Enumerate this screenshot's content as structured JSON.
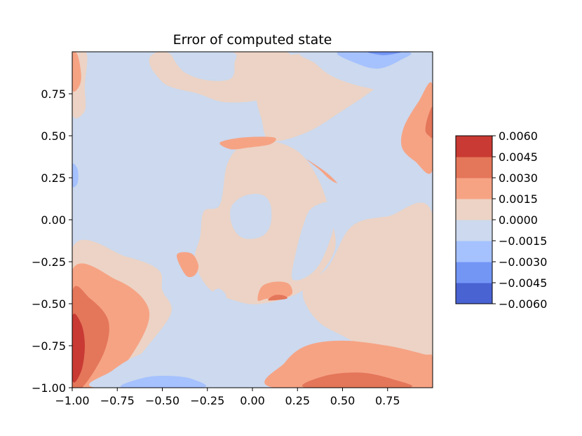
{
  "chart_data": {
    "type": "contourf",
    "title": "Error of computed state",
    "xlabel": "",
    "ylabel": "",
    "xlim": [
      -1.0,
      1.0
    ],
    "ylim": [
      -1.0,
      1.0
    ],
    "x_ticks": [
      "−1.00",
      "−0.75",
      "−0.50",
      "−0.25",
      "0.00",
      "0.25",
      "0.50",
      "0.75"
    ],
    "x_tick_values": [
      -1.0,
      -0.75,
      -0.5,
      -0.25,
      0.0,
      0.25,
      0.5,
      0.75
    ],
    "y_ticks": [
      "−1.00",
      "−0.75",
      "−0.50",
      "−0.25",
      "0.00",
      "0.25",
      "0.50",
      "0.75"
    ],
    "y_tick_values": [
      -1.0,
      -0.75,
      -0.5,
      -0.25,
      0.0,
      0.25,
      0.5,
      0.75
    ],
    "colorbar": {
      "levels": [
        -0.006,
        -0.0045,
        -0.003,
        -0.0015,
        0.0,
        0.0015,
        0.003,
        0.0045,
        0.006
      ],
      "tick_labels": [
        "0.0060",
        "0.0045",
        "0.0030",
        "0.0015",
        "0.0000",
        "−0.0015",
        "−0.0030",
        "−0.0045",
        "−0.0060"
      ],
      "colors": [
        "#4a63d3",
        "#7396f5",
        "#a5c1fe",
        "#ccd9ee",
        "#ecd3c5",
        "#f6a384",
        "#e4765a",
        "#c83a33"
      ]
    },
    "regions": [
      {
        "level": 0.0,
        "points": [
          [
            -0.18,
            0.09
          ],
          [
            -0.14,
            0.33
          ],
          [
            -0.05,
            0.45
          ],
          [
            0.1,
            0.47
          ],
          [
            0.26,
            0.4
          ],
          [
            0.37,
            0.23
          ],
          [
            0.44,
            0.0
          ],
          [
            0.45,
            -0.2
          ],
          [
            0.28,
            -0.42
          ],
          [
            0.05,
            -0.5
          ],
          [
            -0.1,
            -0.48
          ],
          [
            -0.24,
            -0.41
          ],
          [
            -0.32,
            -0.25
          ],
          [
            -0.29,
            -0.1
          ],
          [
            -0.27,
            0.05
          ]
        ]
      },
      {
        "level": 0.0,
        "points": [
          [
            0.28,
            -0.42
          ],
          [
            0.42,
            -0.28
          ],
          [
            0.55,
            -0.04
          ],
          [
            0.75,
            0.02
          ],
          [
            1.0,
            0.03
          ],
          [
            1.0,
            -0.95
          ],
          [
            0.82,
            -0.9
          ],
          [
            0.55,
            -0.72
          ],
          [
            0.36,
            -0.6
          ]
        ]
      },
      {
        "level": 0.0,
        "points": [
          [
            0.1,
            0.47
          ],
          [
            0.05,
            0.6
          ],
          [
            0.02,
            0.75
          ],
          [
            0.05,
            0.9
          ],
          [
            0.2,
            0.98
          ],
          [
            0.6,
            0.99
          ],
          [
            0.85,
            0.98
          ],
          [
            0.7,
            0.8
          ],
          [
            0.5,
            0.65
          ],
          [
            0.3,
            0.52
          ]
        ]
      },
      {
        "level": 0.0,
        "points": [
          [
            -1.0,
            -0.17
          ],
          [
            -0.7,
            -0.22
          ],
          [
            -0.52,
            -0.3
          ],
          [
            -0.5,
            -0.42
          ],
          [
            -0.45,
            -0.55
          ],
          [
            -0.58,
            -0.75
          ],
          [
            -0.72,
            -0.92
          ],
          [
            -0.78,
            -1.0
          ],
          [
            -1.0,
            -1.0
          ]
        ]
      },
      {
        "level": 0.0,
        "points": [
          [
            -0.5,
            0.82
          ],
          [
            -0.3,
            0.75
          ],
          [
            -0.15,
            0.7
          ],
          [
            0.05,
            0.72
          ],
          [
            0.12,
            0.82
          ],
          [
            0.18,
            1.0
          ],
          [
            -0.52,
            1.0
          ]
        ]
      },
      {
        "level": 0.0,
        "points": [
          [
            -1.0,
            0.99
          ],
          [
            -0.92,
            0.99
          ],
          [
            -0.93,
            0.8
          ],
          [
            -0.93,
            0.65
          ],
          [
            -1.0,
            0.63
          ]
        ]
      },
      {
        "level": 0.0015,
        "points": [
          [
            -1.0,
            -0.3
          ],
          [
            -0.75,
            -0.36
          ],
          [
            -0.6,
            -0.48
          ],
          [
            -0.58,
            -0.62
          ],
          [
            -0.7,
            -0.85
          ],
          [
            -0.85,
            -1.0
          ],
          [
            -1.0,
            -1.0
          ]
        ]
      },
      {
        "level": 0.003,
        "points": [
          [
            -1.0,
            -0.43
          ],
          [
            -0.9,
            -0.47
          ],
          [
            -0.8,
            -0.6
          ],
          [
            -0.82,
            -0.78
          ],
          [
            -0.93,
            -0.98
          ],
          [
            -1.0,
            -1.0
          ]
        ]
      },
      {
        "level": 0.0045,
        "points": [
          [
            -1.0,
            -0.58
          ],
          [
            -0.95,
            -0.62
          ],
          [
            -0.93,
            -0.75
          ],
          [
            -0.95,
            -0.9
          ],
          [
            -1.0,
            -0.95
          ]
        ]
      },
      {
        "level": 0.0015,
        "points": [
          [
            0.12,
            -1.0
          ],
          [
            0.18,
            -0.85
          ],
          [
            0.3,
            -0.75
          ],
          [
            0.5,
            -0.72
          ],
          [
            0.75,
            -0.75
          ],
          [
            0.95,
            -0.8
          ],
          [
            1.0,
            -0.82
          ],
          [
            1.0,
            -1.0
          ]
        ]
      },
      {
        "level": 0.003,
        "points": [
          [
            0.3,
            -1.0
          ],
          [
            0.4,
            -0.93
          ],
          [
            0.6,
            -0.91
          ],
          [
            0.78,
            -0.95
          ],
          [
            0.86,
            -1.0
          ]
        ]
      },
      {
        "level": 0.0015,
        "points": [
          [
            1.0,
            0.8
          ],
          [
            0.92,
            0.7
          ],
          [
            0.84,
            0.55
          ],
          [
            0.83,
            0.43
          ],
          [
            0.9,
            0.35
          ],
          [
            1.0,
            0.3
          ]
        ]
      },
      {
        "level": 0.003,
        "points": [
          [
            1.0,
            0.67
          ],
          [
            0.97,
            0.6
          ],
          [
            0.96,
            0.53
          ],
          [
            0.98,
            0.5
          ],
          [
            1.0,
            0.5
          ]
        ]
      },
      {
        "level": 0.0015,
        "points": [
          [
            -1.0,
            0.98
          ],
          [
            -0.97,
            0.98
          ],
          [
            -0.95,
            0.85
          ],
          [
            -0.97,
            0.78
          ],
          [
            -1.0,
            0.78
          ]
        ]
      },
      {
        "level": 0.0015,
        "points": [
          [
            -0.18,
            0.46
          ],
          [
            -0.05,
            0.49
          ],
          [
            0.12,
            0.49
          ],
          [
            0.1,
            0.45
          ],
          [
            -0.02,
            0.43
          ],
          [
            -0.12,
            0.42
          ]
        ]
      },
      {
        "level": 0.0015,
        "points": [
          [
            0.3,
            0.36
          ],
          [
            0.4,
            0.29
          ],
          [
            0.47,
            0.22
          ],
          [
            0.43,
            0.24
          ],
          [
            0.37,
            0.3
          ]
        ]
      },
      {
        "level": 0.0015,
        "points": [
          [
            -0.42,
            -0.21
          ],
          [
            -0.34,
            -0.2
          ],
          [
            -0.3,
            -0.27
          ],
          [
            -0.32,
            -0.33
          ],
          [
            -0.37,
            -0.33
          ]
        ]
      },
      {
        "level": 0.0015,
        "points": [
          [
            0.03,
            -0.48
          ],
          [
            0.05,
            -0.4
          ],
          [
            0.12,
            -0.37
          ],
          [
            0.2,
            -0.38
          ],
          [
            0.22,
            -0.44
          ],
          [
            0.16,
            -0.47
          ],
          [
            0.08,
            -0.47
          ]
        ]
      },
      {
        "level": 0.003,
        "points": [
          [
            0.09,
            -0.48
          ],
          [
            0.12,
            -0.45
          ],
          [
            0.17,
            -0.45
          ],
          [
            0.19,
            -0.47
          ]
        ]
      },
      {
        "level": -0.0015,
        "points": [
          [
            -1.0,
            0.56
          ],
          [
            -0.88,
            0.48
          ],
          [
            -0.82,
            0.3
          ],
          [
            -0.86,
            0.1
          ],
          [
            -0.98,
            0.0
          ],
          [
            -1.0,
            0.0
          ]
        ]
      },
      {
        "level": -0.003,
        "points": [
          [
            -1.0,
            0.33
          ],
          [
            -0.97,
            0.3
          ],
          [
            -0.97,
            0.22
          ],
          [
            -1.0,
            0.2
          ]
        ]
      },
      {
        "level": -0.0015,
        "points": [
          [
            -0.45,
            0.98
          ],
          [
            -0.38,
            0.88
          ],
          [
            -0.25,
            0.83
          ],
          [
            -0.12,
            0.84
          ],
          [
            -0.1,
            0.93
          ],
          [
            -0.12,
            1.0
          ],
          [
            -0.45,
            1.0
          ]
        ]
      },
      {
        "level": -0.0015,
        "points": [
          [
            0.3,
            1.0
          ],
          [
            0.35,
            0.93
          ],
          [
            0.45,
            0.85
          ],
          [
            0.62,
            0.79
          ],
          [
            0.75,
            0.79
          ],
          [
            0.93,
            0.98
          ],
          [
            0.95,
            1.0
          ]
        ]
      },
      {
        "level": -0.003,
        "points": [
          [
            0.48,
            1.0
          ],
          [
            0.58,
            0.93
          ],
          [
            0.7,
            0.9
          ],
          [
            0.82,
            0.95
          ],
          [
            0.86,
            1.0
          ]
        ]
      },
      {
        "level": -0.0045,
        "points": [
          [
            0.64,
            1.0
          ],
          [
            0.72,
            0.98
          ],
          [
            0.8,
            0.99
          ],
          [
            0.81,
            1.0
          ]
        ]
      },
      {
        "level": -0.0015,
        "points": [
          [
            -0.87,
            -1.0
          ],
          [
            -0.78,
            -0.9
          ],
          [
            -0.62,
            -0.8
          ],
          [
            -0.45,
            -0.78
          ],
          [
            -0.3,
            -0.82
          ],
          [
            -0.18,
            -0.9
          ],
          [
            -0.14,
            -1.0
          ]
        ]
      },
      {
        "level": -0.003,
        "points": [
          [
            -0.72,
            -1.0
          ],
          [
            -0.6,
            -0.94
          ],
          [
            -0.45,
            -0.93
          ],
          [
            -0.33,
            -0.95
          ],
          [
            -0.28,
            -1.0
          ]
        ]
      },
      {
        "level": -0.0015,
        "points": [
          [
            -0.05,
            0.14
          ],
          [
            0.05,
            0.15
          ],
          [
            0.1,
            0.09
          ],
          [
            0.1,
            -0.03
          ],
          [
            0.05,
            -0.1
          ],
          [
            -0.05,
            -0.11
          ],
          [
            -0.11,
            -0.04
          ],
          [
            -0.12,
            0.07
          ]
        ]
      },
      {
        "level": -0.0015,
        "points": [
          [
            -0.47,
            0.23
          ],
          [
            -0.38,
            0.29
          ],
          [
            -0.3,
            0.34
          ],
          [
            -0.3,
            0.25
          ],
          [
            -0.35,
            0.22
          ],
          [
            -0.42,
            0.22
          ]
        ]
      },
      {
        "level": -0.0015,
        "points": [
          [
            -0.47,
            0.1
          ],
          [
            -0.48,
            0.03
          ],
          [
            -0.47,
            -0.07
          ],
          [
            -0.44,
            0.0
          ],
          [
            -0.44,
            0.08
          ]
        ]
      },
      {
        "level": -0.0015,
        "points": [
          [
            0.22,
            -0.35
          ],
          [
            0.24,
            -0.2
          ],
          [
            0.28,
            -0.04
          ],
          [
            0.33,
            0.07
          ],
          [
            0.45,
            0.1
          ],
          [
            0.45,
            -0.05
          ],
          [
            0.38,
            -0.25
          ],
          [
            0.3,
            -0.34
          ]
        ]
      },
      {
        "level": -0.0015,
        "points": [
          [
            0.47,
            0.05
          ],
          [
            0.49,
            0.04
          ],
          [
            0.5,
            -0.03
          ],
          [
            0.48,
            -0.07
          ]
        ]
      },
      {
        "level": -0.0015,
        "points": [
          [
            -0.23,
            -0.44
          ],
          [
            -0.19,
            -0.41
          ],
          [
            -0.15,
            -0.44
          ],
          [
            -0.15,
            -0.48
          ],
          [
            -0.2,
            -0.46
          ]
        ]
      }
    ]
  }
}
